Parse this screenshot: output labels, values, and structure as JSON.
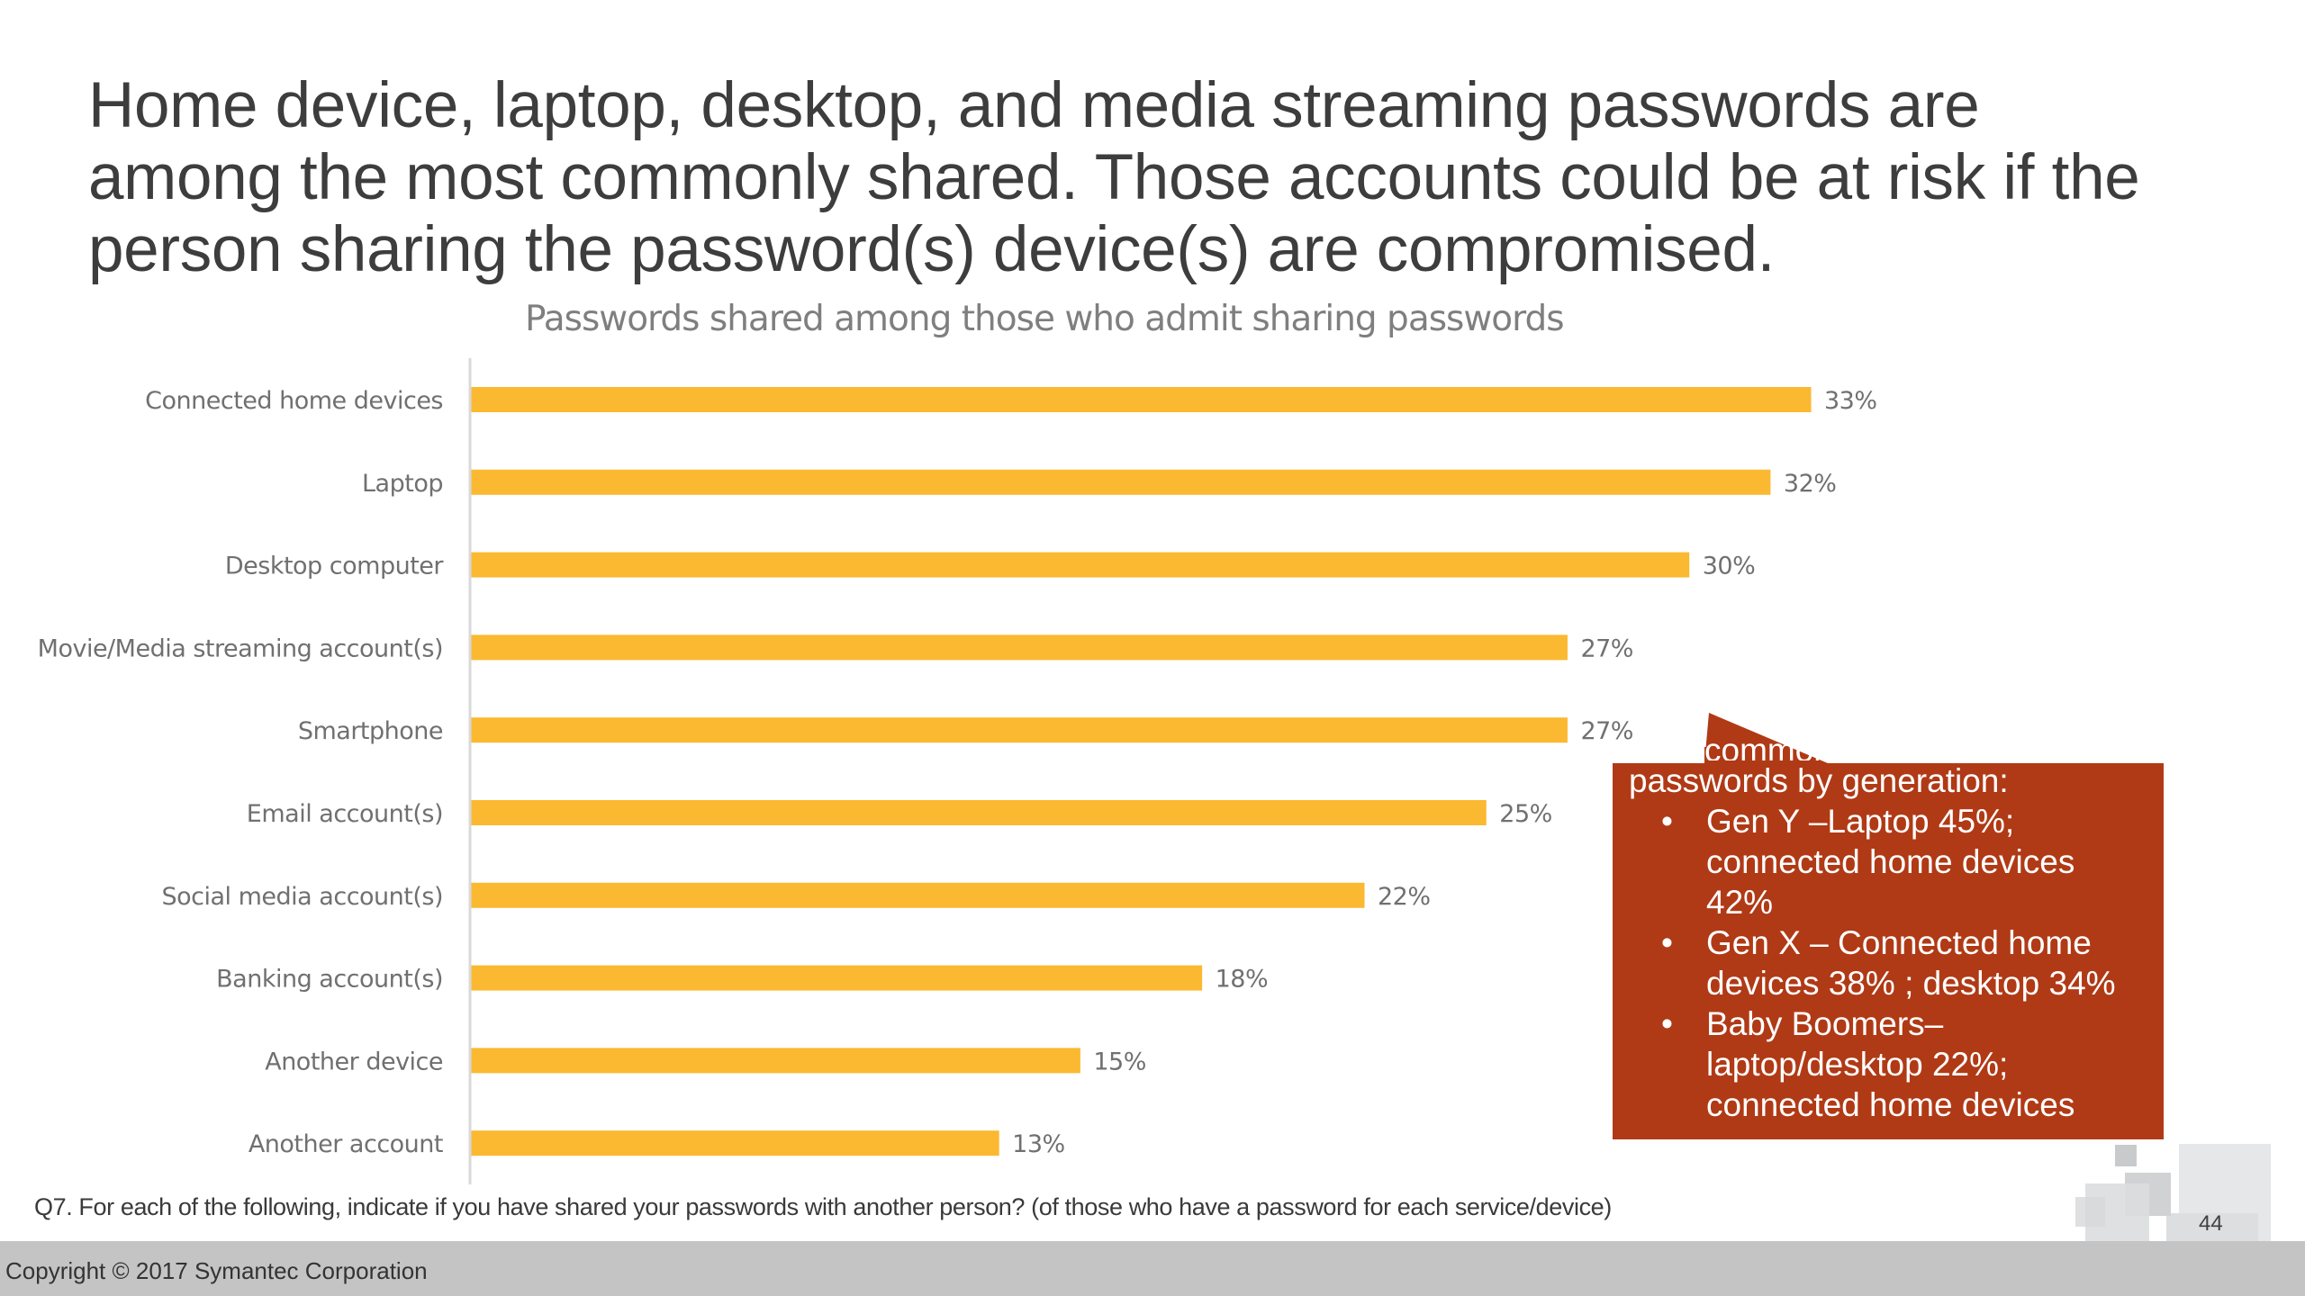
{
  "slide": {
    "title_lines": [
      "Home device, laptop, desktop, and media streaming passwords are",
      "among the most commonly shared. Those accounts could be at risk if the",
      "person sharing the password(s) device(s) are compromised."
    ],
    "footnote": "Q7. For each of the following, indicate if you have shared your passwords with another person? (of those who have a password for each service/device)",
    "copyright": "Copyright © 2017 Symantec Corporation",
    "page_number": "44"
  },
  "callout": {
    "partial_line": "commonly",
    "intro": "passwords by generation:",
    "bullet_glyph": "•",
    "bullets": [
      {
        "lines": [
          "Gen Y –Laptop 45%;",
          "connected home devices",
          "42%"
        ]
      },
      {
        "lines": [
          "Gen X – Connected home",
          "devices 38% ; desktop 34%"
        ]
      },
      {
        "lines": [
          "Baby Boomers–",
          "laptop/desktop 22%;",
          "connected home devices"
        ]
      }
    ],
    "color": "#b03a16"
  },
  "chart_data": {
    "type": "bar",
    "orientation": "horizontal",
    "title": "Passwords shared among those who admit sharing passwords",
    "xlabel": "",
    "ylabel": "",
    "categories": [
      "Connected home devices",
      "Laptop",
      "Desktop computer",
      "Movie/Media streaming account(s)",
      "Smartphone",
      "Email account(s)",
      "Social media account(s)",
      "Banking account(s)",
      "Another device",
      "Another account"
    ],
    "values": [
      33,
      32,
      30,
      27,
      27,
      25,
      22,
      18,
      15,
      13
    ],
    "value_labels": [
      "33%",
      "32%",
      "30%",
      "27%",
      "27%",
      "25%",
      "22%",
      "18%",
      "15%",
      "13%"
    ],
    "unit": "%",
    "xlim": [
      0,
      33
    ],
    "grid": false,
    "legend": "none",
    "bar_color": "#fbb931"
  }
}
